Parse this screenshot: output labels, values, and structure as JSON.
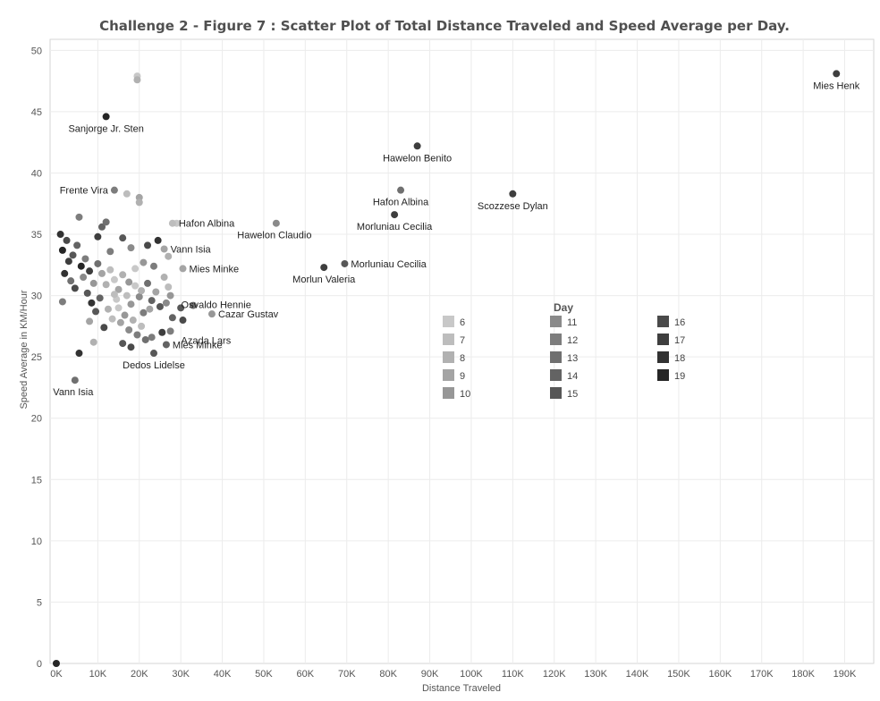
{
  "chart_data": {
    "type": "scatter",
    "title": "Challenge 2  - Figure 7  : Scatter Plot of Total Distance Traveled and Speed Average per Day.",
    "xlabel": "Distance Traveled",
    "ylabel": "Speed Average in KM/Hour",
    "xlim": [
      -1500,
      197000
    ],
    "ylim": [
      0,
      50.9
    ],
    "x_ticks": [
      0,
      10000,
      20000,
      30000,
      40000,
      50000,
      60000,
      70000,
      80000,
      90000,
      100000,
      110000,
      120000,
      130000,
      140000,
      150000,
      160000,
      170000,
      180000,
      190000
    ],
    "x_tick_labels": [
      "0K",
      "10K",
      "20K",
      "30K",
      "40K",
      "50K",
      "60K",
      "70K",
      "80K",
      "90K",
      "100K",
      "110K",
      "120K",
      "130K",
      "140K",
      "150K",
      "160K",
      "170K",
      "180K",
      "190K"
    ],
    "y_ticks": [
      0,
      5,
      10,
      15,
      20,
      25,
      30,
      35,
      40,
      45,
      50
    ],
    "y_tick_labels": [
      "0",
      "5",
      "10",
      "15",
      "20",
      "25",
      "30",
      "35",
      "40",
      "45",
      "50"
    ],
    "grid": true,
    "legend": {
      "title": "Day",
      "placement": "center-right",
      "entries": [
        {
          "label": "6",
          "color": "#c8c8c8"
        },
        {
          "label": "7",
          "color": "#bdbdbd"
        },
        {
          "label": "8",
          "color": "#b1b1b1"
        },
        {
          "label": "9",
          "color": "#a4a4a4"
        },
        {
          "label": "10",
          "color": "#979797"
        },
        {
          "label": "11",
          "color": "#8a8a8a"
        },
        {
          "label": "12",
          "color": "#7d7d7d"
        },
        {
          "label": "13",
          "color": "#707070"
        },
        {
          "label": "14",
          "color": "#636363"
        },
        {
          "label": "15",
          "color": "#575757"
        },
        {
          "label": "16",
          "color": "#4a4a4a"
        },
        {
          "label": "17",
          "color": "#3e3e3e"
        },
        {
          "label": "18",
          "color": "#323232"
        },
        {
          "label": "19",
          "color": "#262626"
        }
      ]
    },
    "labeled_points": [
      {
        "label": "Mies Henk",
        "x": 188000,
        "y": 48.1,
        "day": 17,
        "label_pos": "below"
      },
      {
        "label": "Sanjorge Jr. Sten",
        "x": 12000,
        "y": 44.6,
        "day": 19,
        "label_pos": "below"
      },
      {
        "label": "Hawelon Benito",
        "x": 87000,
        "y": 42.2,
        "day": 17,
        "label_pos": "below"
      },
      {
        "label": "Frente Vira",
        "x": 14000,
        "y": 38.6,
        "day": 12,
        "label_pos": "left"
      },
      {
        "label": "Hafon Albina",
        "x": 83000,
        "y": 38.6,
        "day": 13,
        "label_pos": "below"
      },
      {
        "label": "Scozzese Dylan",
        "x": 110000,
        "y": 38.3,
        "day": 17,
        "label_pos": "below"
      },
      {
        "label": "Morluniau Cecilia",
        "x": 81500,
        "y": 36.6,
        "day": 17,
        "label_pos": "below"
      },
      {
        "label": "Hafon Albina",
        "x": 28000,
        "y": 35.9,
        "day": 7,
        "label_pos": "right"
      },
      {
        "label": "Hawelon Claudio",
        "x": 53000,
        "y": 35.9,
        "day": 11,
        "label_pos": "below-left"
      },
      {
        "label": "Vann Isia",
        "x": 26000,
        "y": 33.8,
        "day": 9,
        "label_pos": "right"
      },
      {
        "label": "Morluniau Cecilia",
        "x": 69500,
        "y": 32.6,
        "day": 15,
        "label_pos": "right"
      },
      {
        "label": "Morlun Valeria",
        "x": 64500,
        "y": 32.3,
        "day": 17,
        "label_pos": "below"
      },
      {
        "label": "Mies Minke",
        "x": 30500,
        "y": 32.2,
        "day": 9,
        "label_pos": "right"
      },
      {
        "label": "Osvaldo Hennie",
        "x": 27500,
        "y": 30.0,
        "day": 10,
        "label_pos": "below-right"
      },
      {
        "label": "Cazar Gustav",
        "x": 37500,
        "y": 28.5,
        "day": 10,
        "label_pos": "right"
      },
      {
        "label": "Azada Lars",
        "x": 27500,
        "y": 27.1,
        "day": 12,
        "label_pos": "below-right"
      },
      {
        "label": "Mies Minke",
        "x": 26500,
        "y": 26.0,
        "day": 14,
        "label_pos": "right"
      },
      {
        "label": "Dedos Lidelse",
        "x": 23500,
        "y": 25.3,
        "day": 15,
        "label_pos": "below"
      },
      {
        "label": "Vann Isia",
        "x": 4500,
        "y": 23.1,
        "day": 13,
        "label_pos": "below-left"
      }
    ],
    "points": [
      {
        "x": 19500,
        "y": 47.9,
        "day": 6
      },
      {
        "x": 19500,
        "y": 47.6,
        "day": 8
      },
      {
        "x": 17000,
        "y": 38.3,
        "day": 7
      },
      {
        "x": 20000,
        "y": 38.0,
        "day": 9
      },
      {
        "x": 20000,
        "y": 37.6,
        "day": 8
      },
      {
        "x": 29000,
        "y": 35.9,
        "day": 6
      },
      {
        "x": 5500,
        "y": 36.4,
        "day": 12
      },
      {
        "x": 0,
        "y": 0,
        "day": 19
      },
      {
        "x": 1000,
        "y": 35.0,
        "day": 18
      },
      {
        "x": 1500,
        "y": 33.7,
        "day": 19
      },
      {
        "x": 2500,
        "y": 34.5,
        "day": 16
      },
      {
        "x": 3000,
        "y": 32.8,
        "day": 17
      },
      {
        "x": 2000,
        "y": 31.8,
        "day": 18
      },
      {
        "x": 4000,
        "y": 33.3,
        "day": 15
      },
      {
        "x": 5000,
        "y": 34.1,
        "day": 14
      },
      {
        "x": 6000,
        "y": 32.4,
        "day": 19
      },
      {
        "x": 3500,
        "y": 31.2,
        "day": 13
      },
      {
        "x": 4500,
        "y": 30.6,
        "day": 16
      },
      {
        "x": 7000,
        "y": 33.0,
        "day": 12
      },
      {
        "x": 6500,
        "y": 31.5,
        "day": 11
      },
      {
        "x": 8000,
        "y": 32.0,
        "day": 17
      },
      {
        "x": 7500,
        "y": 30.2,
        "day": 15
      },
      {
        "x": 9000,
        "y": 31.0,
        "day": 10
      },
      {
        "x": 8500,
        "y": 29.4,
        "day": 18
      },
      {
        "x": 10000,
        "y": 32.6,
        "day": 13
      },
      {
        "x": 11000,
        "y": 31.8,
        "day": 9
      },
      {
        "x": 12000,
        "y": 30.9,
        "day": 8
      },
      {
        "x": 13000,
        "y": 32.1,
        "day": 7
      },
      {
        "x": 14000,
        "y": 31.3,
        "day": 6
      },
      {
        "x": 15000,
        "y": 30.5,
        "day": 9
      },
      {
        "x": 16000,
        "y": 31.7,
        "day": 8
      },
      {
        "x": 17000,
        "y": 30.0,
        "day": 7
      },
      {
        "x": 18000,
        "y": 29.3,
        "day": 10
      },
      {
        "x": 19000,
        "y": 30.8,
        "day": 6
      },
      {
        "x": 20000,
        "y": 29.9,
        "day": 11
      },
      {
        "x": 21000,
        "y": 28.6,
        "day": 12
      },
      {
        "x": 22000,
        "y": 31.0,
        "day": 13
      },
      {
        "x": 23000,
        "y": 29.6,
        "day": 14
      },
      {
        "x": 24000,
        "y": 30.3,
        "day": 9
      },
      {
        "x": 25000,
        "y": 29.1,
        "day": 15
      },
      {
        "x": 12500,
        "y": 28.9,
        "day": 8
      },
      {
        "x": 13500,
        "y": 28.1,
        "day": 7
      },
      {
        "x": 14500,
        "y": 29.7,
        "day": 6
      },
      {
        "x": 15500,
        "y": 27.8,
        "day": 9
      },
      {
        "x": 16500,
        "y": 28.4,
        "day": 10
      },
      {
        "x": 17500,
        "y": 27.2,
        "day": 11
      },
      {
        "x": 18500,
        "y": 28.0,
        "day": 8
      },
      {
        "x": 19500,
        "y": 26.8,
        "day": 12
      },
      {
        "x": 20500,
        "y": 27.5,
        "day": 7
      },
      {
        "x": 21500,
        "y": 26.4,
        "day": 13
      },
      {
        "x": 10500,
        "y": 29.8,
        "day": 14
      },
      {
        "x": 9500,
        "y": 28.7,
        "day": 15
      },
      {
        "x": 11500,
        "y": 27.4,
        "day": 16
      },
      {
        "x": 8000,
        "y": 27.9,
        "day": 9
      },
      {
        "x": 9000,
        "y": 26.2,
        "day": 8
      },
      {
        "x": 10000,
        "y": 34.8,
        "day": 17
      },
      {
        "x": 11000,
        "y": 35.6,
        "day": 14
      },
      {
        "x": 12000,
        "y": 36.0,
        "day": 13
      },
      {
        "x": 13000,
        "y": 33.6,
        "day": 12
      },
      {
        "x": 16000,
        "y": 34.7,
        "day": 15
      },
      {
        "x": 18000,
        "y": 33.9,
        "day": 11
      },
      {
        "x": 22000,
        "y": 34.1,
        "day": 16
      },
      {
        "x": 24500,
        "y": 34.5,
        "day": 18
      },
      {
        "x": 21000,
        "y": 32.7,
        "day": 10
      },
      {
        "x": 23500,
        "y": 32.4,
        "day": 12
      },
      {
        "x": 26000,
        "y": 31.5,
        "day": 8
      },
      {
        "x": 27000,
        "y": 30.7,
        "day": 7
      },
      {
        "x": 26500,
        "y": 29.4,
        "day": 11
      },
      {
        "x": 28000,
        "y": 28.2,
        "day": 14
      },
      {
        "x": 30000,
        "y": 29.0,
        "day": 15
      },
      {
        "x": 30500,
        "y": 28.0,
        "day": 16
      },
      {
        "x": 33000,
        "y": 29.2,
        "day": 13
      },
      {
        "x": 25500,
        "y": 27.0,
        "day": 17
      },
      {
        "x": 23000,
        "y": 26.6,
        "day": 12
      },
      {
        "x": 18000,
        "y": 25.8,
        "day": 16
      },
      {
        "x": 16000,
        "y": 26.1,
        "day": 15
      },
      {
        "x": 5500,
        "y": 25.3,
        "day": 18
      },
      {
        "x": 1500,
        "y": 29.5,
        "day": 12
      },
      {
        "x": 27000,
        "y": 33.2,
        "day": 8
      },
      {
        "x": 19000,
        "y": 32.2,
        "day": 6
      },
      {
        "x": 14000,
        "y": 30.1,
        "day": 7
      },
      {
        "x": 15000,
        "y": 29.0,
        "day": 6
      },
      {
        "x": 20500,
        "y": 30.4,
        "day": 8
      },
      {
        "x": 22500,
        "y": 28.9,
        "day": 9
      },
      {
        "x": 17500,
        "y": 31.1,
        "day": 10
      }
    ]
  }
}
